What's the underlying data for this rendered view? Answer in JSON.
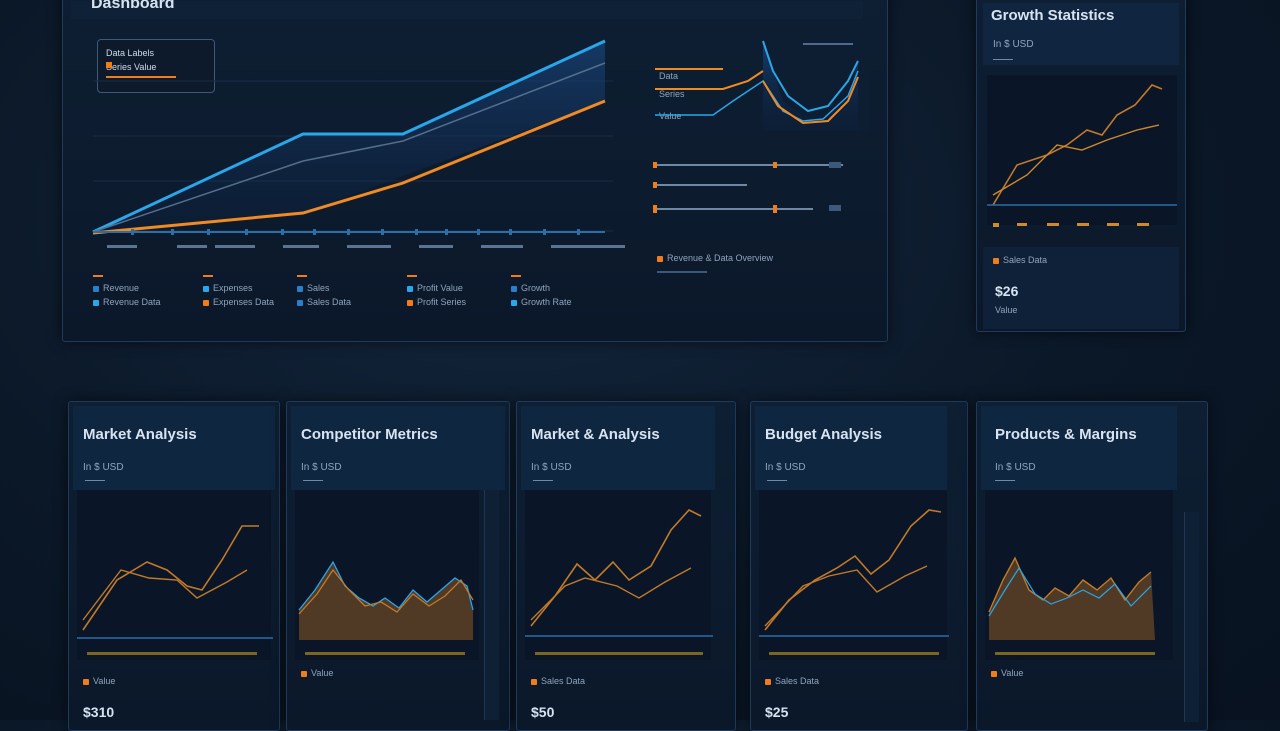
{
  "main_panel": {
    "title": "Dashboard",
    "tooltip": {
      "line1": "Data Labels",
      "line2": "Series Value"
    },
    "legend_items": [
      "Revenue",
      "Revenue Data",
      "Expenses",
      "Expenses Data",
      "Sales",
      "Sales Data",
      "Profit Value",
      "Profit Series",
      "Growth",
      "Growth Rate"
    ],
    "mini_labels": [
      "Data",
      "Series",
      "Value"
    ],
    "bar_row_label": "Revenue & Data Overview"
  },
  "side_panel": {
    "title": "Growth Statistics",
    "subtitle": "In $ USD",
    "legend": "Sales Data",
    "value": "$26",
    "value_sub": "Value"
  },
  "cards": [
    {
      "title": "Market Analysis",
      "subtitle": "In $ USD",
      "value": "$310",
      "legend": "Value"
    },
    {
      "title": "Competitor Metrics",
      "subtitle": "In $ USD",
      "value": "",
      "legend": "Value"
    },
    {
      "title": "Market & Analysis",
      "subtitle": "In $ USD",
      "value": "$50",
      "legend": "Sales Data"
    },
    {
      "title": "Budget Analysis",
      "subtitle": "In $ USD",
      "value": "$25",
      "legend": "Sales Data"
    },
    {
      "title": "Products & Margins",
      "subtitle": "In $ USD",
      "value": "",
      "legend": "Value"
    }
  ],
  "colors": {
    "blue": "#2aa0e6",
    "orange": "#f07d1a",
    "text": "#d6e2f0"
  }
}
